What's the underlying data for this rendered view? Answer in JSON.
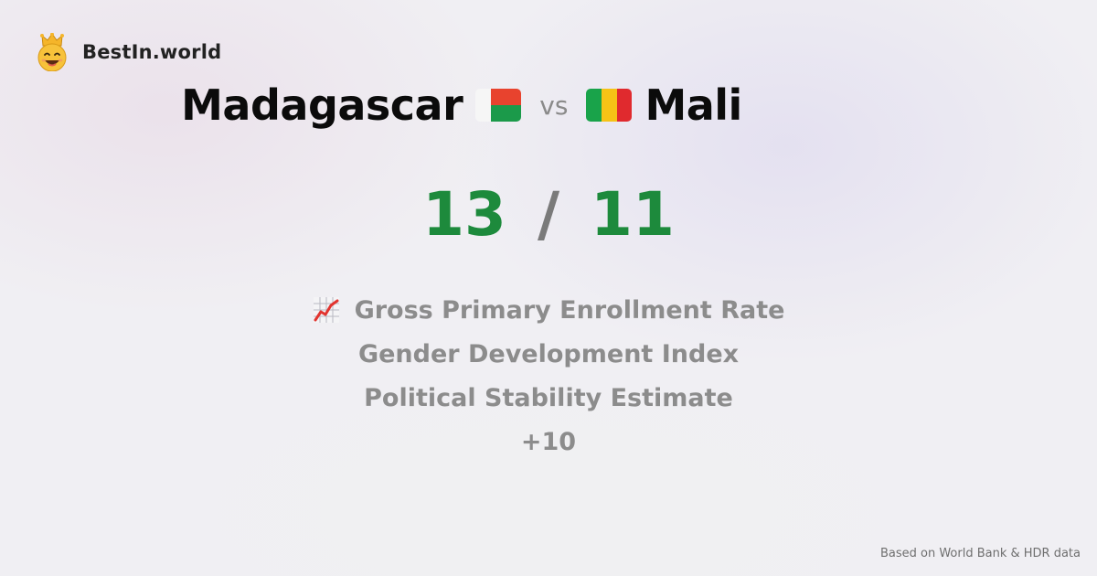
{
  "brand": {
    "name": "BestIn.world",
    "logo_icon": "crowned-smiley-icon"
  },
  "headline": {
    "left_country": "Madagascar",
    "left_flag": "madagascar-flag-icon",
    "vs": "vs",
    "right_country": "Mali",
    "right_flag": "mali-flag-icon"
  },
  "score": {
    "left": "13",
    "separator": "/",
    "right": "11",
    "color": "#1d8a3c"
  },
  "metrics": {
    "icon": "chart-increasing-icon",
    "items": [
      "Gross Primary Enrollment Rate",
      "Gender Development Index",
      "Political Stability Estimate"
    ],
    "more": "+10"
  },
  "footer": {
    "source": "Based on World Bank & HDR data"
  }
}
